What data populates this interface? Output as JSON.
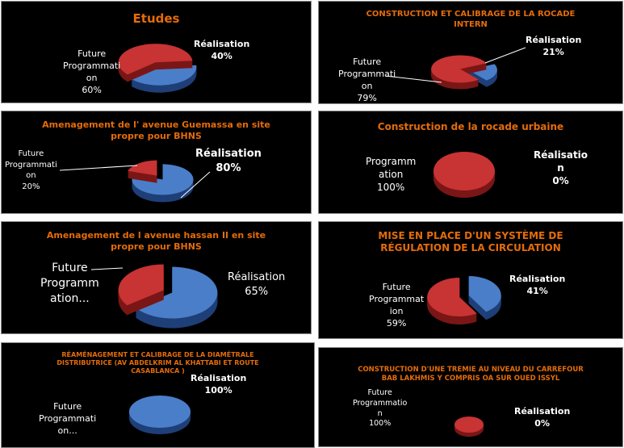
{
  "colors": {
    "realisation": "#4a7ec8",
    "realisation_dark": "#1f3f78",
    "future": "#c83333",
    "future_dark": "#7a1616",
    "title": "#e46c0a",
    "text": "#ffffff"
  },
  "chart_data": [
    {
      "type": "pie",
      "title": "Etudes",
      "categories": [
        "Réalisation",
        "Future Programmation"
      ],
      "values": [
        40,
        60
      ],
      "labels": {
        "realisation": [
          "Réalisation",
          "40%"
        ],
        "future": [
          "Future",
          "Programmati",
          "on",
          "60%"
        ]
      }
    },
    {
      "type": "pie",
      "title": "CONSTRUCTION ET CALIBRAGE DE LA ROCADE INTERN",
      "categories": [
        "Réalisation",
        "Future Programmation"
      ],
      "values": [
        21,
        79
      ],
      "labels": {
        "realisation": [
          "Réalisation",
          "21%"
        ],
        "future": [
          "Future",
          "Programmati",
          "on",
          "79%"
        ]
      }
    },
    {
      "type": "pie",
      "title": "Amenagement de l' avenue Guemassa en site propre pour BHNS",
      "categories": [
        "Réalisation",
        "Future Programmation"
      ],
      "values": [
        80,
        20
      ],
      "labels": {
        "realisation": [
          "Réalisation",
          "80%"
        ],
        "future": [
          "Future",
          "Programmati",
          "on",
          "20%"
        ]
      }
    },
    {
      "type": "pie",
      "title": "Construction de la rocade urbaine",
      "categories": [
        "Réalisation",
        "Programmation"
      ],
      "values": [
        0,
        100
      ],
      "labels": {
        "realisation": [
          "Réalisatio",
          "n",
          "0%"
        ],
        "future": [
          "Programm",
          "ation",
          "100%"
        ]
      }
    },
    {
      "type": "pie",
      "title": "Amenagement de l avenue hassan II en site propre pour BHNS",
      "categories": [
        "Réalisation",
        "Future Programmation"
      ],
      "values": [
        65,
        35
      ],
      "labels": {
        "realisation": [
          "Réalisation",
          "65%"
        ],
        "future": [
          "Future",
          "Programm",
          "ation..."
        ]
      }
    },
    {
      "type": "pie",
      "title": "MISE EN PLACE D'UN SYSTÈME DE RÉGULATION DE LA CIRCULATION",
      "categories": [
        "Réalisation",
        "Future Programmation"
      ],
      "values": [
        41,
        59
      ],
      "labels": {
        "realisation": [
          "Réalisation",
          "41%"
        ],
        "future": [
          "Future",
          "Programmat",
          "ion",
          "59%"
        ]
      }
    },
    {
      "type": "pie",
      "title": "RÉAMÉNAGEMENT ET CALIBRAGE DE LA DIAMÉTRALE DISTRIBUTRICE (AV ABDELKRIM AL KHATTABI ET ROUTE CASABLANCA )",
      "categories": [
        "Réalisation",
        "Future Programmation"
      ],
      "values": [
        100,
        0
      ],
      "labels": {
        "realisation": [
          "Réalisation",
          "100%"
        ],
        "future": [
          "Future",
          "Programmati",
          "on..."
        ]
      }
    },
    {
      "type": "pie",
      "title": "CONSTRUCTION D'UNE TREMIE AU NIVEAU DU CARREFOUR BAB LAKHMIS Y COMPRIS OA SUR OUED ISSYL",
      "categories": [
        "Réalisation",
        "Future Programmation"
      ],
      "values": [
        0,
        100
      ],
      "labels": {
        "realisation": [
          "Réalisation",
          "0%"
        ],
        "future": [
          "Future",
          "Programmatio",
          "n",
          "100%"
        ]
      }
    }
  ]
}
